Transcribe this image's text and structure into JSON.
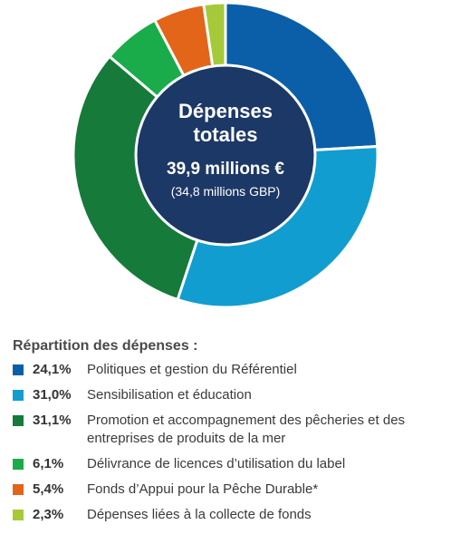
{
  "chart_data": {
    "type": "pie",
    "center": {
      "title_line1": "Dépenses",
      "title_line2": "totales",
      "total": "39,9 millions €",
      "total_gbp": "(34,8 millions GBP)"
    },
    "legend_title": "Répartition des dépenses :",
    "slices": [
      {
        "label": "Politiques et gestion du Référentiel",
        "value": 24.1,
        "display": "24,1%",
        "color": "#0a5fa8"
      },
      {
        "label": "Sensibilisation et éducation",
        "value": 31.0,
        "display": "31,0%",
        "color": "#129dd0"
      },
      {
        "label": "Promotion et accompagnement des pêcheries et des entreprises de produits de la mer",
        "value": 31.1,
        "display": "31,1%",
        "color": "#157a3a"
      },
      {
        "label": "Délivrance de licences d’utilisation du label",
        "value": 6.1,
        "display": "6,1%",
        "color": "#1aab4a"
      },
      {
        "label": "Fonds d’Appui pour la Pêche Durable*",
        "value": 5.4,
        "display": "5,4%",
        "color": "#e2651a"
      },
      {
        "label": "Dépenses liées à la collecte de fonds",
        "value": 2.3,
        "display": "2,3%",
        "color": "#a6c93a"
      }
    ],
    "center_color": "#1c3866"
  }
}
